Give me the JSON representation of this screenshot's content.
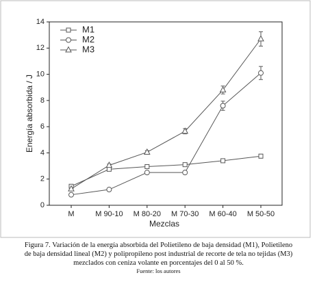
{
  "chart_data": {
    "type": "line",
    "xlabel": "Mezclas",
    "ylabel": "Energía absorbida / J",
    "categories": [
      "M",
      "M 90-10",
      "M 80-20",
      "M 70-30",
      "M 60-40",
      "M 50-50"
    ],
    "series": [
      {
        "name": "M1",
        "marker": "square",
        "color": "#555555",
        "values": [
          1.45,
          2.75,
          2.95,
          3.1,
          3.4,
          3.75
        ],
        "errors": [
          0.1,
          0.1,
          0.1,
          0.1,
          0.12,
          0.15
        ]
      },
      {
        "name": "M2",
        "marker": "circle",
        "color": "#555555",
        "values": [
          0.8,
          1.2,
          2.5,
          2.5,
          7.6,
          10.1
        ],
        "errors": [
          0.05,
          0.05,
          0.05,
          0.05,
          0.35,
          0.5
        ]
      },
      {
        "name": "M3",
        "marker": "triangle",
        "color": "#555555",
        "values": [
          1.25,
          3.05,
          4.05,
          5.65,
          8.8,
          12.7
        ],
        "errors": [
          0.05,
          0.1,
          0.12,
          0.2,
          0.3,
          0.55
        ]
      }
    ],
    "ylim": [
      0,
      14
    ],
    "yticks": [
      0,
      2,
      4,
      6,
      8,
      10,
      12,
      14
    ],
    "legend": "upper-left"
  },
  "caption_lines": [
    "Figura 7. Variación de la energía absorbida del Polietileno de baja densidad (M1), Polietileno",
    "de baja densidad lineal (M2) y polipropileno post industrial de recorte de tela no tejidas (M3)",
    "mezclados con ceniza volante en porcentajes del 0 al 50 %."
  ],
  "source": "Fuente: los autores"
}
